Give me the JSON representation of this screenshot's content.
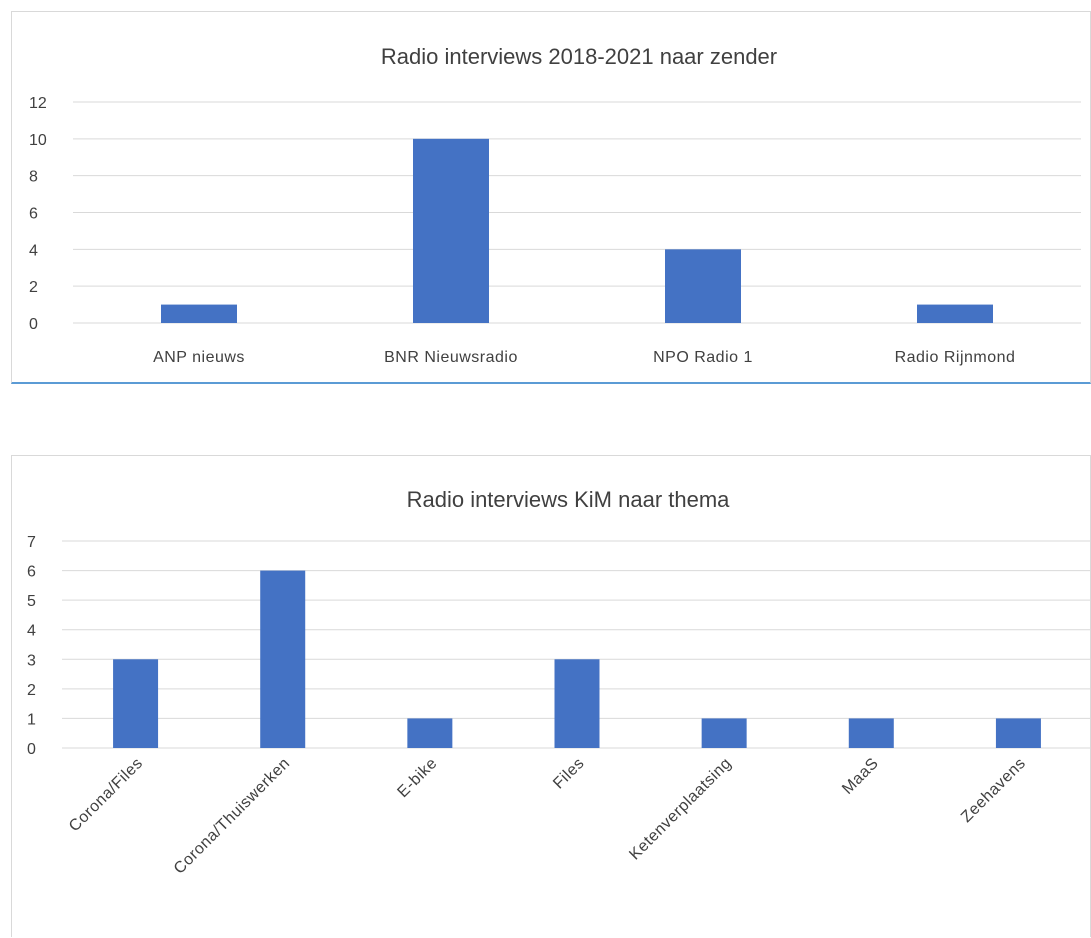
{
  "chart_data": [
    {
      "type": "bar",
      "title": "Radio interviews 2018-2021 naar zender",
      "categories": [
        "ANP nieuws",
        "BNR Nieuwsradio",
        "NPO Radio 1",
        "Radio Rijnmond"
      ],
      "values": [
        1,
        10,
        4,
        1
      ],
      "ylim": [
        0,
        12
      ],
      "yticks": [
        "0",
        "2",
        "4",
        "6",
        "8",
        "10",
        "12"
      ],
      "grid": true,
      "legend": "none",
      "color": "#4472c4"
    },
    {
      "type": "bar",
      "title": "Radio interviews KiM naar thema",
      "categories": [
        "Corona/Files",
        "Corona/Thuiswerken",
        "E-bike",
        "Files",
        "Ketenverplaatsing",
        "MaaS",
        "Zeehavens"
      ],
      "values": [
        3,
        6,
        1,
        3,
        1,
        1,
        1
      ],
      "ylim": [
        0,
        7
      ],
      "yticks": [
        "0",
        "1",
        "2",
        "3",
        "4",
        "5",
        "6",
        "7"
      ],
      "grid": true,
      "legend": "none",
      "color": "#4472c4"
    }
  ]
}
